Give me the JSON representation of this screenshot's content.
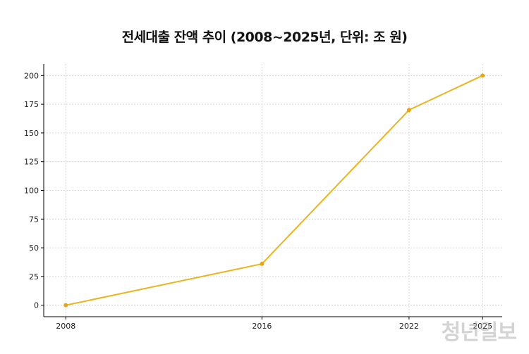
{
  "chart_data": {
    "type": "line",
    "title": "전세대출 잔액 추이 (2008~2025년, 단위: 조 원)",
    "xlabel": "",
    "ylabel": "",
    "x": [
      2008,
      2016,
      2022,
      2025
    ],
    "x_tick_labels": [
      "2008",
      "2016",
      "2022",
      "2025"
    ],
    "series": [
      {
        "values": [
          0,
          36,
          170,
          200
        ]
      }
    ],
    "xlim": [
      2007.1,
      2025.8
    ],
    "ylim": [
      -10,
      210
    ],
    "y_ticks": [
      0,
      25,
      50,
      75,
      100,
      125,
      150,
      175,
      200
    ],
    "grid": true,
    "legend": "none",
    "colors": {
      "line": "#EBB31E",
      "marker": "#E8A417",
      "grid": "#cfcfcf"
    }
  },
  "watermark": {
    "text": "청년일보"
  }
}
